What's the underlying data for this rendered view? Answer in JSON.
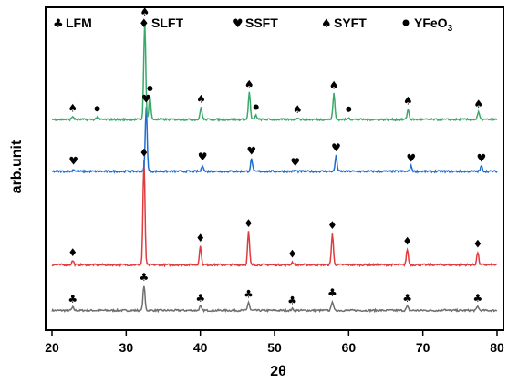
{
  "chart_data": {
    "type": "line",
    "title": "",
    "xlabel": "2θ",
    "ylabel": "arb.unit",
    "xlim": [
      20,
      80
    ],
    "xticks": [
      20,
      30,
      40,
      50,
      60,
      70,
      80
    ],
    "yticks": [],
    "grid": false,
    "legend_position": "top",
    "colors": {
      "LFM": "#6f6f6f",
      "SLFT": "#e03a3e",
      "SSFT": "#1f6fd1",
      "SYFT": "#3aaa6a"
    },
    "legend": [
      {
        "symbol": "♣",
        "label": "LFM"
      },
      {
        "symbol": "♦",
        "label": "SLFT"
      },
      {
        "symbol": "♥",
        "label": "SSFT"
      },
      {
        "symbol": "♠",
        "label": "SYFT"
      },
      {
        "symbol": "●",
        "label": "YFeO",
        "sub": "3"
      }
    ],
    "series": [
      {
        "key": "LFM",
        "symbol": "♣",
        "baseline": 0.04,
        "peaks": [
          [
            22.8,
            0.03
          ],
          [
            32.4,
            0.24
          ],
          [
            40.0,
            0.04
          ],
          [
            46.5,
            0.08
          ],
          [
            52.4,
            0.015
          ],
          [
            57.8,
            0.09
          ],
          [
            67.9,
            0.04
          ],
          [
            72.9,
            0.015
          ],
          [
            77.4,
            0.04
          ]
        ],
        "markers": [
          22.8,
          32.4,
          40.0,
          46.5,
          52.4,
          57.8,
          67.9,
          77.4
        ]
      },
      {
        "key": "SLFT",
        "symbol": "♦",
        "baseline": 0.48,
        "peaks": [
          [
            22.8,
            0.04
          ],
          [
            32.4,
            1.0
          ],
          [
            40.0,
            0.18
          ],
          [
            46.5,
            0.32
          ],
          [
            52.4,
            0.025
          ],
          [
            57.8,
            0.3
          ],
          [
            67.9,
            0.15
          ],
          [
            77.4,
            0.12
          ]
        ],
        "markers": [
          22.8,
          32.4,
          40.0,
          46.5,
          52.4,
          57.8,
          67.9,
          77.4
        ]
      },
      {
        "key": "SSFT",
        "symbol": "♥",
        "baseline": 1.38,
        "peaks": [
          [
            22.9,
            0.02
          ],
          [
            32.7,
            0.62
          ],
          [
            40.3,
            0.06
          ],
          [
            46.9,
            0.12
          ],
          [
            52.8,
            0.01
          ],
          [
            58.3,
            0.15
          ],
          [
            68.4,
            0.05
          ],
          [
            77.9,
            0.05
          ]
        ],
        "markers": [
          22.9,
          32.7,
          40.3,
          46.9,
          52.8,
          58.3,
          68.4,
          77.9
        ]
      },
      {
        "key": "SYFT",
        "symbol": "♠",
        "baseline": 1.88,
        "peaks": [
          [
            22.8,
            0.03
          ],
          [
            26.1,
            0.025
          ],
          [
            32.5,
            0.96
          ],
          [
            33.2,
            0.22
          ],
          [
            40.1,
            0.12
          ],
          [
            46.6,
            0.26
          ],
          [
            47.5,
            0.04
          ],
          [
            53.1,
            0.02
          ],
          [
            58.0,
            0.25
          ],
          [
            60.0,
            0.02
          ],
          [
            68.0,
            0.1
          ],
          [
            77.5,
            0.07
          ]
        ],
        "markers": [
          22.8,
          32.5,
          40.1,
          46.6,
          53.1,
          58.0,
          68.0,
          77.5
        ],
        "extra_markers": [
          26.1,
          33.2,
          47.5,
          60.0
        ]
      }
    ]
  }
}
